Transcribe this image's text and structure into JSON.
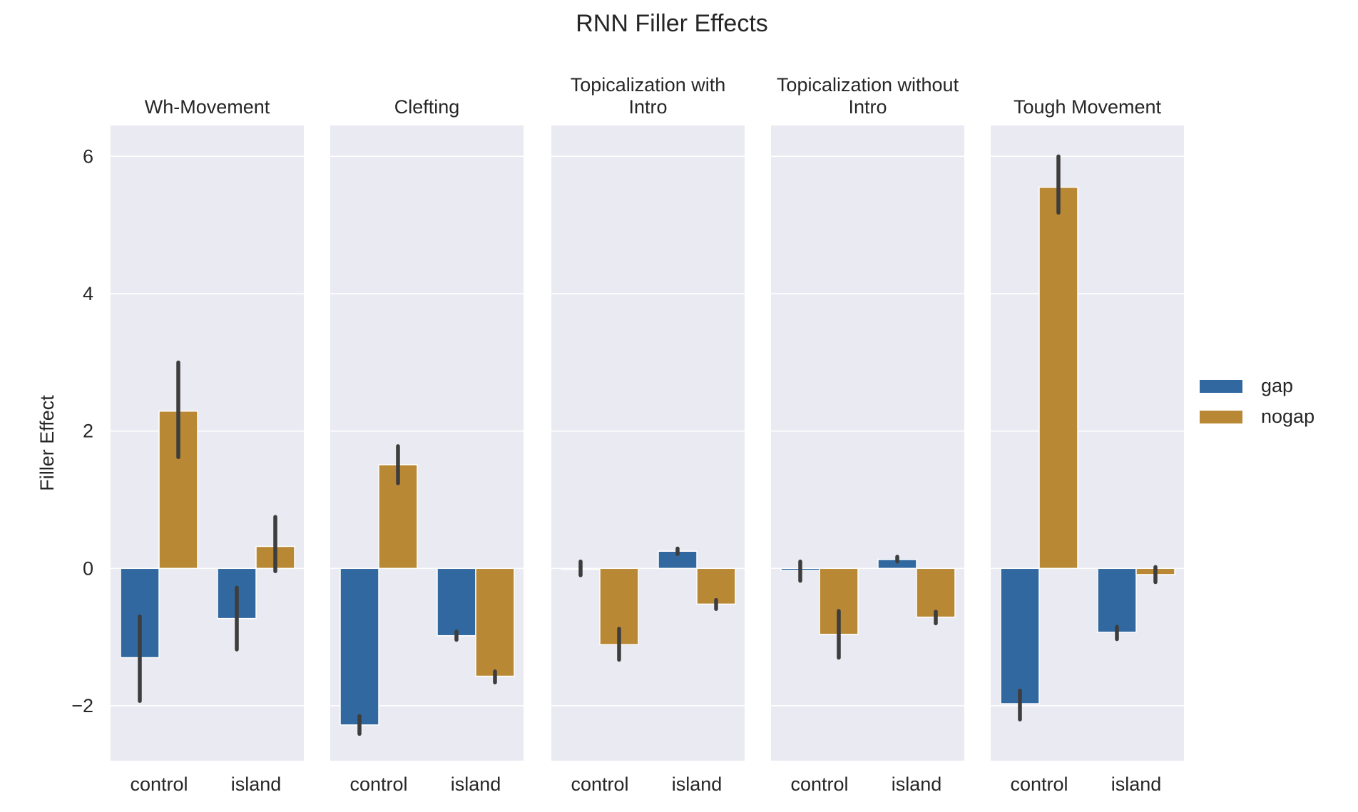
{
  "chart_data": {
    "type": "bar",
    "title": "RNN Filler Effects",
    "ylabel": "Filler Effect",
    "ylim": [
      -2.8,
      6.45
    ],
    "yticks": [
      -2,
      0,
      2,
      4,
      6
    ],
    "ytick_labels": [
      "−2",
      "0",
      "2",
      "4",
      "6"
    ],
    "grid": true,
    "legend_position": "right",
    "categories": [
      "control",
      "island"
    ],
    "series_styles": [
      {
        "name": "gap",
        "color": "#31689f"
      },
      {
        "name": "nogap",
        "color": "#b98834"
      }
    ],
    "panels": [
      {
        "title_lines": [
          "Wh-Movement"
        ],
        "series": [
          {
            "name": "gap",
            "values": [
              -1.3,
              -0.73
            ],
            "ci": [
              [
                -1.93,
                -0.7
              ],
              [
                -1.18,
                -0.28
              ]
            ]
          },
          {
            "name": "nogap",
            "values": [
              2.29,
              0.32
            ],
            "ci": [
              [
                1.62,
                3.0
              ],
              [
                -0.04,
                0.75
              ]
            ]
          }
        ]
      },
      {
        "title_lines": [
          "Clefting"
        ],
        "series": [
          {
            "name": "gap",
            "values": [
              -2.28,
              -0.98
            ],
            "ci": [
              [
                -2.41,
                -2.15
              ],
              [
                -1.04,
                -0.92
              ]
            ]
          },
          {
            "name": "nogap",
            "values": [
              1.51,
              -1.57
            ],
            "ci": [
              [
                1.24,
                1.78
              ],
              [
                -1.66,
                -1.5
              ]
            ]
          }
        ]
      },
      {
        "title_lines": [
          "Topicalization with",
          "Intro"
        ],
        "series": [
          {
            "name": "gap",
            "values": [
              0.0,
              0.25
            ],
            "ci": [
              [
                -0.1,
                0.1
              ],
              [
                0.21,
                0.29
              ]
            ]
          },
          {
            "name": "nogap",
            "values": [
              -1.11,
              -0.52
            ],
            "ci": [
              [
                -1.33,
                -0.88
              ],
              [
                -0.59,
                -0.46
              ]
            ]
          }
        ]
      },
      {
        "title_lines": [
          "Topicalization without",
          "Intro"
        ],
        "series": [
          {
            "name": "gap",
            "values": [
              -0.03,
              0.13
            ],
            "ci": [
              [
                -0.18,
                0.1
              ],
              [
                0.1,
                0.17
              ]
            ]
          },
          {
            "name": "nogap",
            "values": [
              -0.96,
              -0.71
            ],
            "ci": [
              [
                -1.3,
                -0.62
              ],
              [
                -0.8,
                -0.63
              ]
            ]
          }
        ]
      },
      {
        "title_lines": [
          "Tough Movement"
        ],
        "series": [
          {
            "name": "gap",
            "values": [
              -1.97,
              -0.93
            ],
            "ci": [
              [
                -2.2,
                -1.78
              ],
              [
                -1.03,
                -0.85
              ]
            ]
          },
          {
            "name": "nogap",
            "values": [
              5.55,
              -0.09
            ],
            "ci": [
              [
                5.18,
                6.0
              ],
              [
                -0.2,
                0.02
              ]
            ]
          }
        ]
      }
    ]
  }
}
